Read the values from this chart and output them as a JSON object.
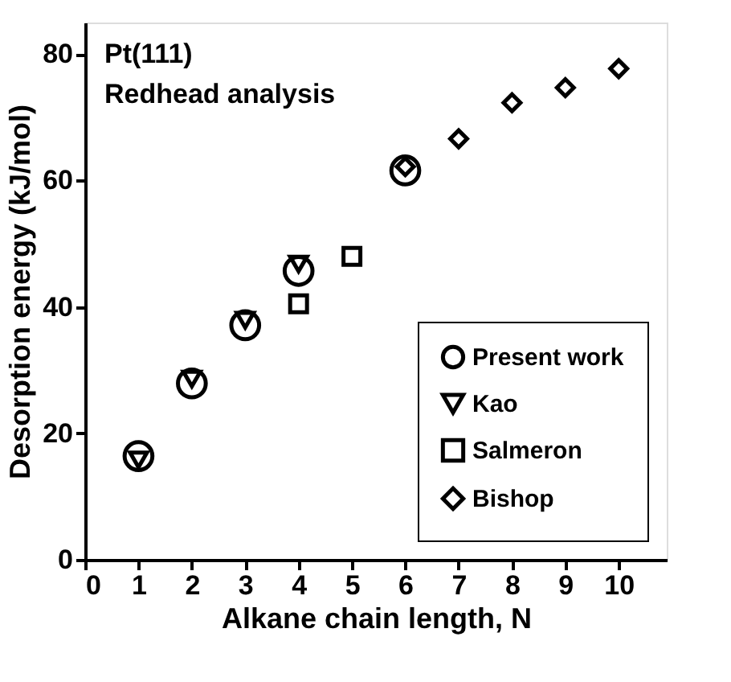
{
  "chart_data": {
    "type": "scatter",
    "xlabel": "Alkane chain length, N",
    "ylabel": "Desorption energy (kJ/mol)",
    "annotations": [
      "Pt(111)",
      "Redhead analysis"
    ],
    "xlim": [
      0,
      10.9
    ],
    "xticks": [
      0,
      1,
      2,
      3,
      4,
      5,
      6,
      7,
      8,
      9,
      10
    ],
    "ylim": [
      0,
      85
    ],
    "yticks": [
      0,
      20,
      40,
      60,
      80
    ],
    "grid": false,
    "legend": "bottom right",
    "series": [
      {
        "name": "Present work",
        "color": "#000000",
        "marker": "circle",
        "x": [
          1,
          2,
          3,
          4,
          6
        ],
        "values": [
          16.4,
          27.9,
          37.1,
          45.7,
          61.6
        ]
      },
      {
        "name": "Kao",
        "color": "#000000",
        "marker": "triangle",
        "x": [
          1,
          2,
          3,
          4
        ],
        "values": [
          15.8,
          28.6,
          37.9,
          46.8
        ]
      },
      {
        "name": "Salmeron",
        "color": "#000000",
        "marker": "square",
        "x": [
          4,
          5
        ],
        "values": [
          40.5,
          48
        ]
      },
      {
        "name": "Bishop",
        "color": "#000000",
        "marker": "diamond",
        "x": [
          6,
          7,
          8,
          9,
          10
        ],
        "values": [
          62.2,
          66.6,
          72.3,
          74.7,
          77.7
        ]
      }
    ]
  }
}
